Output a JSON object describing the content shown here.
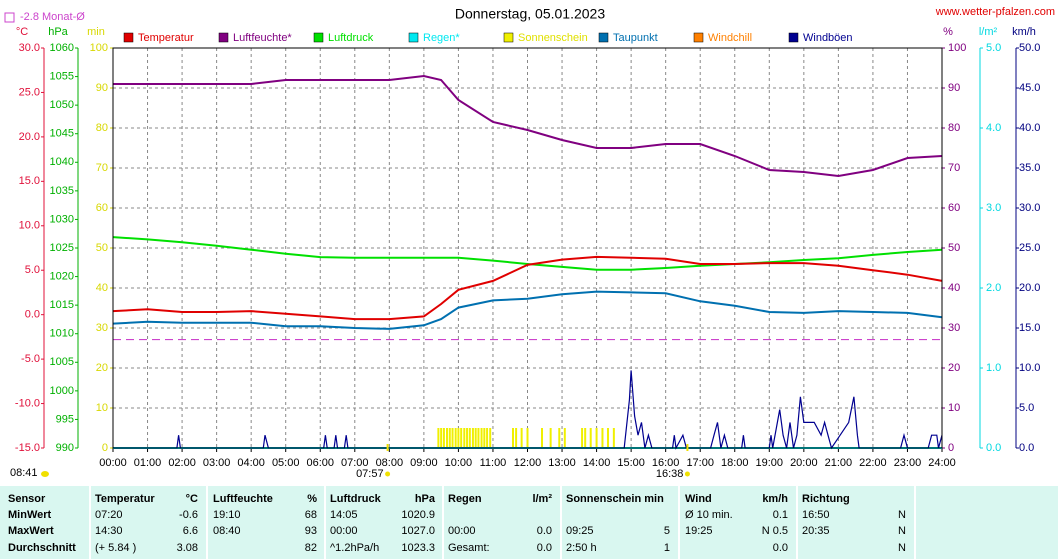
{
  "chart_data": {
    "type": "line",
    "title": "Donnerstag, 05.01.2023",
    "source": "www.wetter-pfalzen.com",
    "reference": {
      "label": "-2.8 Monat-Ø",
      "value": -2.8,
      "color": "#cc44cc",
      "axis": "y"
    },
    "xlim": [
      0,
      24
    ],
    "xticks": [
      {
        "value": 0,
        "label": "00:00"
      },
      {
        "value": 1,
        "label": "01:00"
      },
      {
        "value": 2,
        "label": "02:00"
      },
      {
        "value": 3,
        "label": "03:00"
      },
      {
        "value": 4,
        "label": "04:00"
      },
      {
        "value": 5,
        "label": "05:00"
      },
      {
        "value": 6,
        "label": "06:00"
      },
      {
        "value": 7,
        "label": "07:00"
      },
      {
        "value": 8,
        "label": "08:00"
      },
      {
        "value": 9,
        "label": "09:00"
      },
      {
        "value": 10,
        "label": "10:00"
      },
      {
        "value": 11,
        "label": "11:00"
      },
      {
        "value": 12,
        "label": "12:00"
      },
      {
        "value": 13,
        "label": "13:00"
      },
      {
        "value": 14,
        "label": "14:00"
      },
      {
        "value": 15,
        "label": "15:00"
      },
      {
        "value": 16,
        "label": "16:00"
      },
      {
        "value": 17,
        "label": "17:00"
      },
      {
        "value": 18,
        "label": "18:00"
      },
      {
        "value": 19,
        "label": "19:00"
      },
      {
        "value": 20,
        "label": "20:00"
      },
      {
        "value": 21,
        "label": "21:00"
      },
      {
        "value": 22,
        "label": "22:00"
      },
      {
        "value": 23,
        "label": "23:00"
      },
      {
        "value": 24,
        "label": "24:00"
      }
    ],
    "grid": true,
    "axes": {
      "y": {
        "label": "°C",
        "color": "#e0103a",
        "lim": [
          -15,
          30
        ],
        "ticks": [
          {
            "value": -15,
            "label": "-15.0"
          },
          {
            "value": -10,
            "label": "-10.0"
          },
          {
            "value": -5,
            "label": "-5.0"
          },
          {
            "value": 0,
            "label": "0.0"
          },
          {
            "value": 5,
            "label": "5.0"
          },
          {
            "value": 10,
            "label": "10.0"
          },
          {
            "value": 15,
            "label": "15.0"
          },
          {
            "value": 20,
            "label": "20.0"
          },
          {
            "value": 25,
            "label": "25.0"
          },
          {
            "value": 30,
            "label": "30.0"
          }
        ]
      },
      "y2": {
        "label": "hPa",
        "color": "#00b000",
        "lim": [
          990,
          1060
        ],
        "ticks": [
          990,
          995,
          1000,
          1005,
          1010,
          1015,
          1020,
          1025,
          1030,
          1035,
          1040,
          1045,
          1050,
          1055,
          1060
        ]
      },
      "y3": {
        "label": "min",
        "color": "#d8d800",
        "lim": [
          0,
          100
        ],
        "ticks": [
          0,
          10,
          20,
          30,
          40,
          50,
          60,
          70,
          80,
          90,
          100
        ]
      },
      "y4": {
        "label": "%",
        "color": "#800080",
        "lim": [
          0,
          100
        ],
        "ticks": [
          0,
          10,
          20,
          30,
          40,
          50,
          60,
          70,
          80,
          90,
          100
        ]
      },
      "y5": {
        "label": "l/m²",
        "color": "#00d8e0",
        "lim": [
          0,
          5
        ],
        "ticks": [
          {
            "value": 0,
            "label": "0.0"
          },
          {
            "value": 1,
            "label": "1.0"
          },
          {
            "value": 2,
            "label": "2.0"
          },
          {
            "value": 3,
            "label": "3.0"
          },
          {
            "value": 4,
            "label": "4.0"
          },
          {
            "value": 5,
            "label": "5.0"
          }
        ]
      },
      "y6": {
        "label": "km/h",
        "color": "#000080",
        "lim": [
          0,
          50
        ],
        "ticks": [
          {
            "value": 0,
            "label": "0.0"
          },
          {
            "value": 5,
            "label": "5.0"
          },
          {
            "value": 10,
            "label": "10.0"
          },
          {
            "value": 15,
            "label": "15.0"
          },
          {
            "value": 20,
            "label": "20.0"
          },
          {
            "value": 25,
            "label": "25.0"
          },
          {
            "value": 30,
            "label": "30.0"
          },
          {
            "value": 35,
            "label": "35.0"
          },
          {
            "value": 40,
            "label": "40.0"
          },
          {
            "value": 45,
            "label": "45.0"
          },
          {
            "value": 50,
            "label": "50.0"
          }
        ]
      }
    },
    "x": [
      0,
      1,
      2,
      3,
      4,
      5,
      6,
      7,
      8,
      9,
      9.5,
      10,
      11,
      12,
      13,
      14,
      15,
      16,
      17,
      18,
      19,
      20,
      21,
      22,
      23,
      24
    ],
    "series": [
      {
        "name": "Temperatur",
        "color": "#e00000",
        "axis": "y",
        "values": [
          0.4,
          0.6,
          0.3,
          0.3,
          0.4,
          0.1,
          -0.2,
          -0.5,
          -0.5,
          -0.2,
          1.2,
          2.8,
          3.8,
          5.6,
          6.2,
          6.5,
          6.4,
          6.3,
          5.7,
          5.7,
          5.8,
          5.8,
          5.5,
          5.0,
          4.5,
          3.8
        ]
      },
      {
        "name": "Luftfeuchte*",
        "color": "#800080",
        "axis": "y4",
        "values": [
          91,
          91,
          91,
          91,
          91,
          92,
          92,
          92,
          92,
          93,
          92,
          87,
          81.5,
          79.5,
          77,
          75,
          75,
          76,
          76,
          73,
          69.5,
          69,
          68,
          69.5,
          72.5,
          73
        ]
      },
      {
        "name": "Luftdruck",
        "color": "#00e000",
        "axis": "y2",
        "values": [
          1026.9,
          1026.5,
          1026.0,
          1025.4,
          1024.7,
          1024.0,
          1023.4,
          1023.3,
          1023.3,
          1023.3,
          1023.3,
          1023.3,
          1022.8,
          1022.2,
          1021.7,
          1021.2,
          1021.2,
          1021.5,
          1021.9,
          1022.2,
          1022.5,
          1022.9,
          1023.2,
          1023.8,
          1024.3,
          1024.7
        ]
      },
      {
        "name": "Regen*",
        "color": "#00e8f0",
        "axis": "y5",
        "values": [
          0,
          0,
          0,
          0,
          0,
          0,
          0,
          0,
          0,
          0,
          0,
          0,
          0,
          0,
          0,
          0,
          0,
          0,
          0,
          0,
          0,
          0,
          0,
          0,
          0,
          0
        ]
      },
      {
        "name": "Sonnenschein",
        "color": "#f0f000",
        "axis": "y3",
        "type": "bar",
        "x": [
          9.42,
          9.5,
          9.58,
          9.67,
          9.75,
          9.83,
          9.92,
          10.0,
          10.08,
          10.17,
          10.25,
          10.33,
          10.42,
          10.5,
          10.58,
          10.67,
          10.75,
          10.83,
          10.92,
          11.58,
          11.67,
          11.83,
          12.0,
          12.42,
          12.67,
          12.92,
          13.08,
          13.58,
          13.67,
          13.83,
          14.0,
          14.17,
          14.33,
          14.5
        ],
        "values": [
          5,
          5,
          5,
          5,
          5,
          5,
          5,
          5,
          5,
          5,
          5,
          5,
          5,
          5,
          5,
          5,
          5,
          5,
          5,
          5,
          5,
          5,
          5,
          5,
          5,
          5,
          5,
          5,
          5,
          5,
          5,
          5,
          5,
          5
        ]
      },
      {
        "name": "Taupunkt",
        "color": "#0070b0",
        "axis": "y",
        "values": [
          -1.0,
          -0.8,
          -0.9,
          -0.9,
          -0.9,
          -1.3,
          -1.3,
          -1.5,
          -1.6,
          -1.2,
          -0.5,
          0.8,
          1.6,
          1.8,
          2.3,
          2.6,
          2.5,
          2.4,
          1.5,
          1.0,
          0.3,
          0.2,
          0.4,
          0.3,
          0.2,
          -0.3
        ]
      },
      {
        "name": "Windchill",
        "color": "#ff8000",
        "axis": "y",
        "values": [
          null,
          null,
          null,
          null,
          null,
          null,
          null,
          null,
          null,
          null,
          null,
          null,
          null,
          null,
          null,
          null,
          null,
          null,
          null,
          null,
          null,
          null,
          null,
          null,
          null,
          null
        ]
      },
      {
        "name": "Windböen",
        "color": "#000090",
        "axis": "y6",
        "x": [
          0,
          1.85,
          1.9,
          1.95,
          4.35,
          4.4,
          4.5,
          6.1,
          6.15,
          6.2,
          6.4,
          6.45,
          6.5,
          6.7,
          6.75,
          6.8,
          14.8,
          14.95,
          15.0,
          15.1,
          15.2,
          15.3,
          15.4,
          15.5,
          15.6,
          16.2,
          16.25,
          16.3,
          16.5,
          16.6,
          17.3,
          17.4,
          17.5,
          17.6,
          17.7,
          17.8,
          18.2,
          18.25,
          18.3,
          19.0,
          19.05,
          19.1,
          19.3,
          19.4,
          19.5,
          19.6,
          19.7,
          19.8,
          19.9,
          20.0,
          20.3,
          20.5,
          20.6,
          20.7,
          20.8,
          21.3,
          21.45,
          21.55,
          21.6,
          22.8,
          22.9,
          23.0,
          23.6,
          23.7,
          23.85,
          23.9,
          24
        ],
        "values": [
          0,
          0,
          1.6,
          0,
          0,
          1.6,
          0,
          0,
          1.6,
          0,
          0,
          1.6,
          0,
          0,
          1.6,
          0,
          0,
          6,
          9.7,
          4,
          1.6,
          3.2,
          0,
          1.6,
          0,
          0,
          1.6,
          0,
          1.6,
          0,
          0,
          1.6,
          3.2,
          0,
          1.6,
          0,
          0,
          1.6,
          0,
          0,
          1.6,
          0,
          4.8,
          1.6,
          0,
          3.2,
          0,
          1.6,
          6.4,
          3.2,
          3.2,
          1.6,
          3.2,
          1.6,
          0,
          3.2,
          6.4,
          1.6,
          0,
          0,
          1.6,
          0,
          0,
          1.6,
          1.6,
          0,
          1.6
        ]
      }
    ],
    "annotations": [
      {
        "label": "07:57",
        "x": 7.95
      },
      {
        "label": "16:38",
        "x": 16.63
      }
    ],
    "moon": {
      "label": "08:41"
    }
  },
  "table": {
    "header": [
      "Sensor",
      "Temperatur",
      "°C",
      "Luftfeuchte",
      "%",
      "Luftdruck",
      "hPa",
      "Regen",
      "l/m²",
      "Sonnenschein min",
      null,
      "Wind",
      "km/h",
      "Richtung",
      null
    ],
    "rows": [
      [
        "MinWert",
        "07:20",
        "-0.6",
        "19:10",
        "68",
        "14:05",
        "1020.9",
        null,
        null,
        null,
        null,
        "Ø 10 min.",
        "0.1",
        "16:50",
        "N"
      ],
      [
        "MaxWert",
        "14:30",
        "6.6",
        "08:40",
        "93",
        "00:00",
        "1027.0",
        "00:00",
        "0.0",
        "09:25",
        "5",
        "19:25",
        "N 0.5",
        "20:35",
        "N"
      ],
      [
        "Durchschnitt",
        "(+ 5.84 )",
        "3.08",
        null,
        "82",
        "^1.2hPa/h",
        "1023.3",
        "Gesamt:",
        "0.0",
        "2:50 h",
        "1",
        null,
        "0.0",
        null,
        "N"
      ]
    ]
  }
}
